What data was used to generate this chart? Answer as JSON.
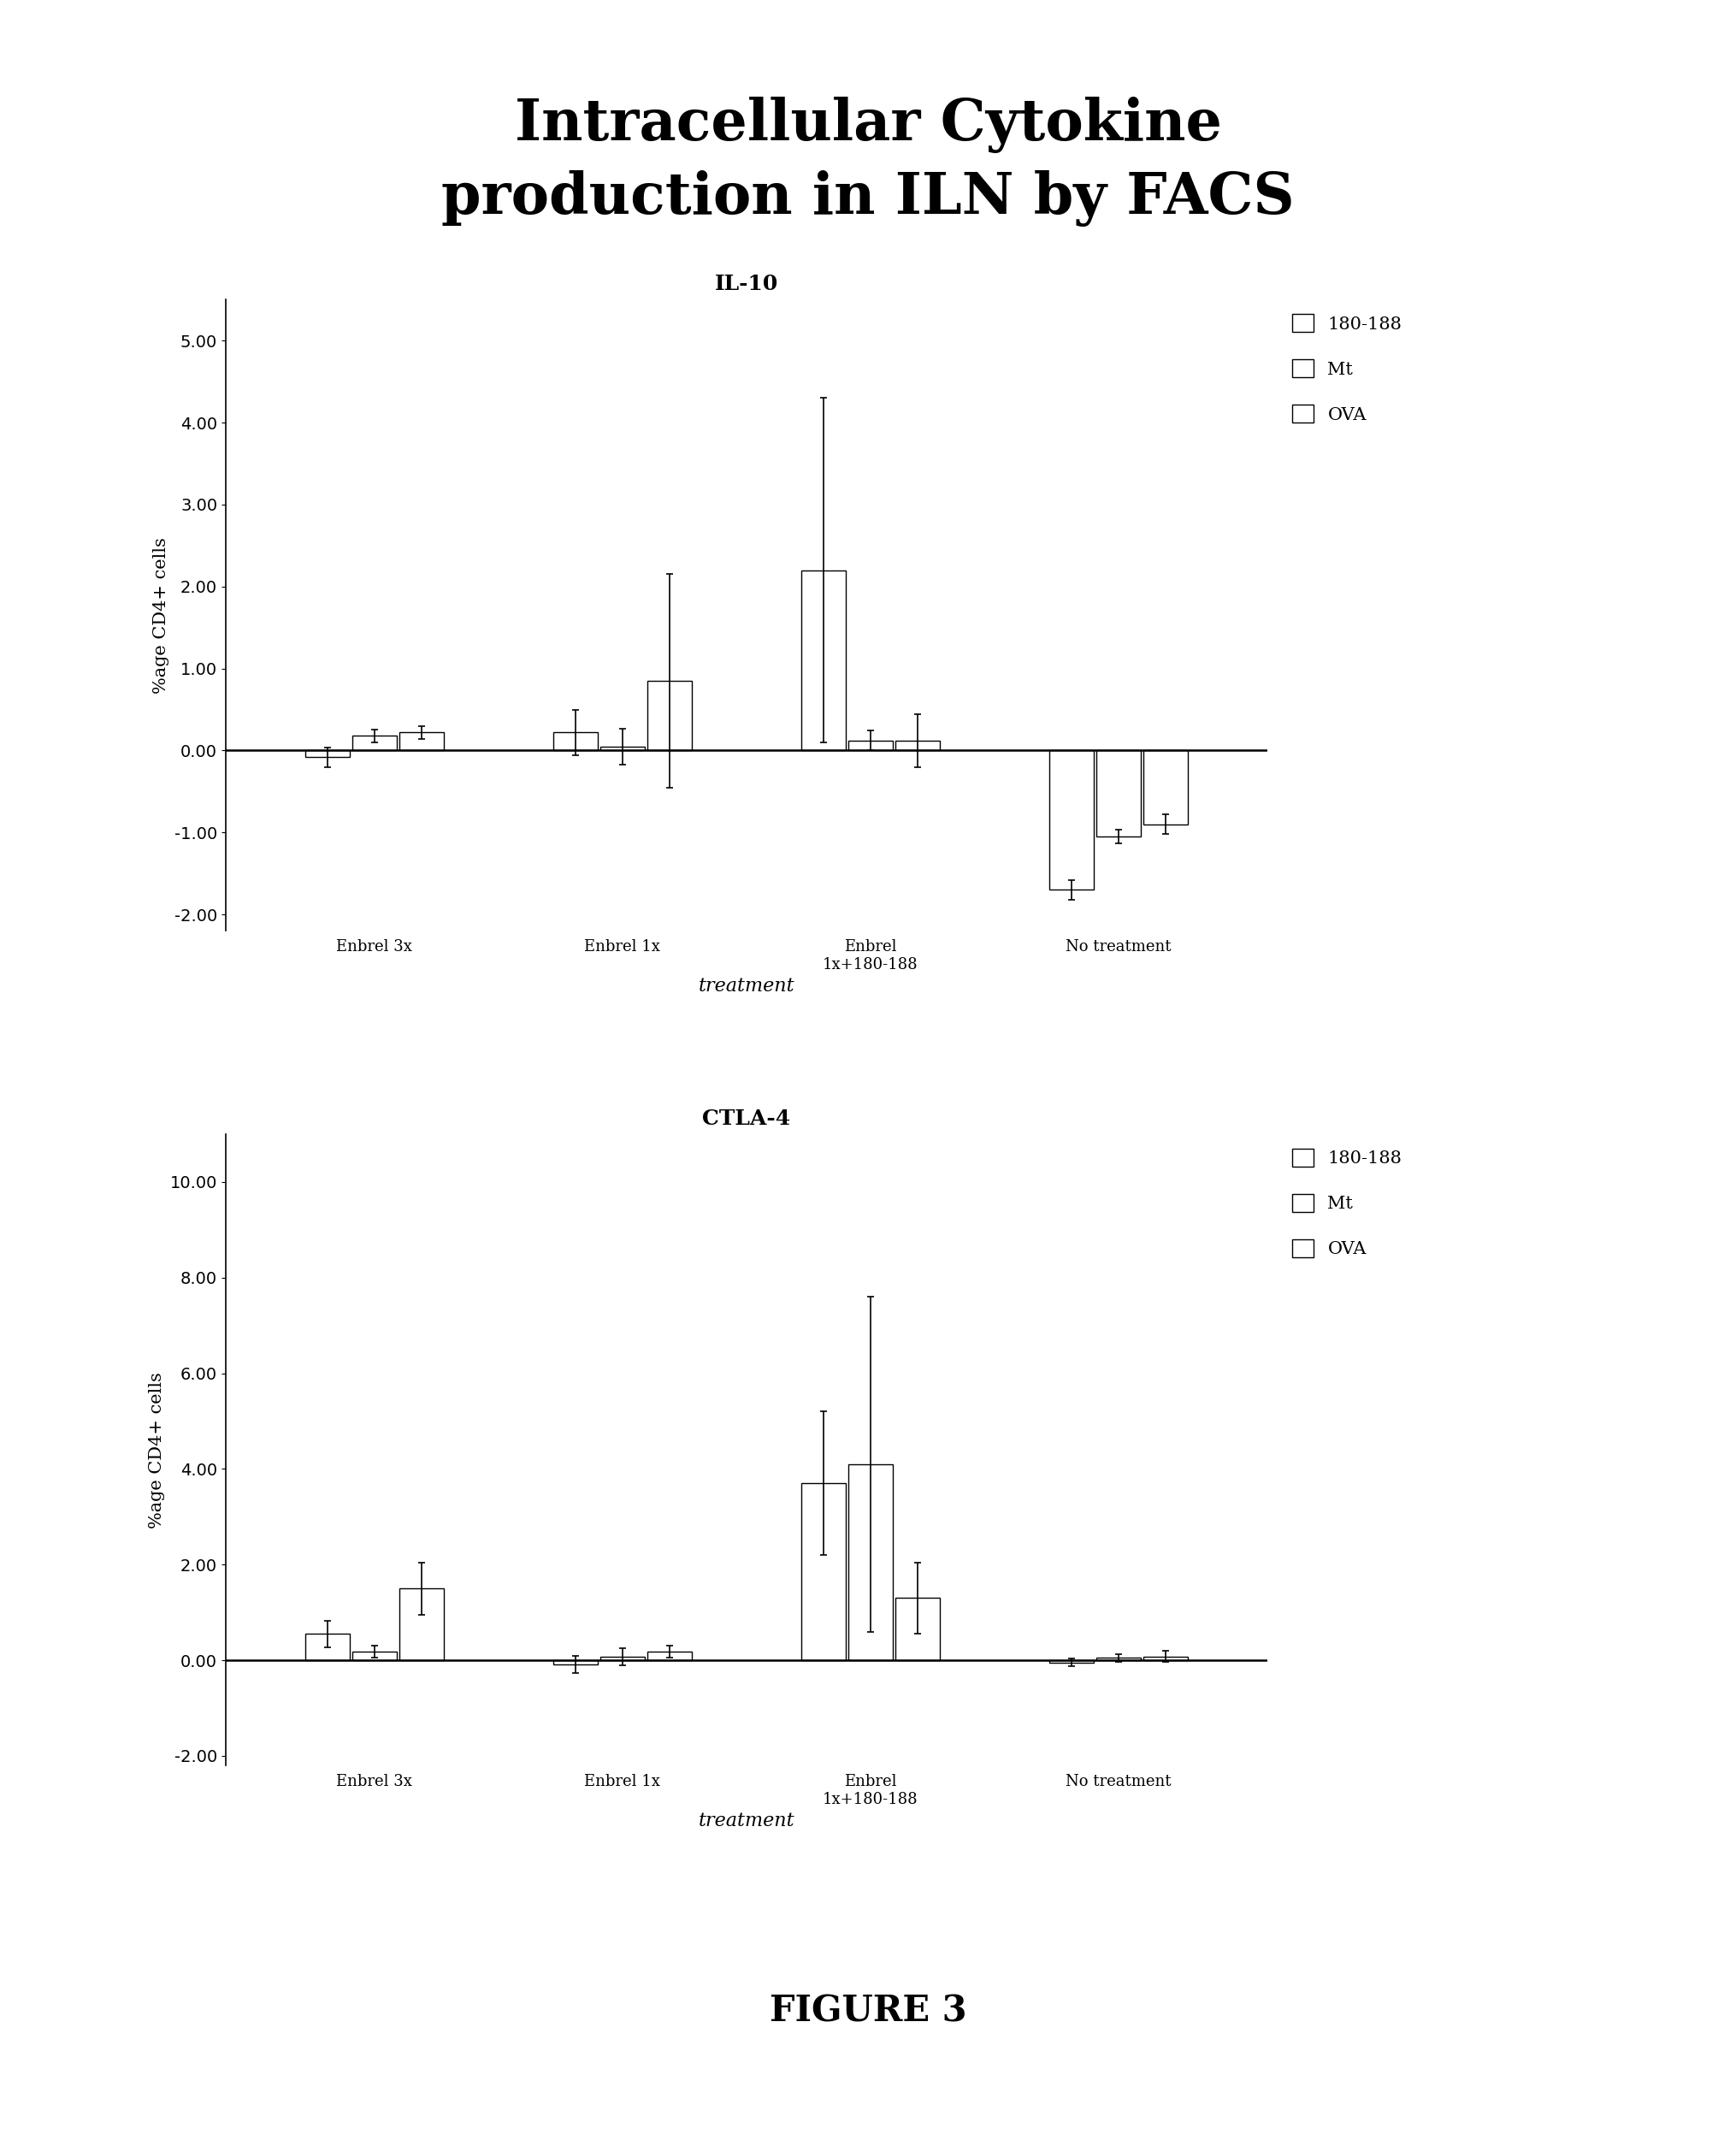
{
  "title": "Intracellular Cytokine\nproduction in ILN by FACS",
  "figure_label": "FIGURE 3",
  "plot1_title": "IL-10",
  "plot1_ylabel": "%age CD4+ cells",
  "plot1_xlabel": "treatment",
  "plot1_ylim": [
    -2.2,
    5.5
  ],
  "plot1_yticks": [
    -2.0,
    -1.0,
    0.0,
    1.0,
    2.0,
    3.0,
    4.0,
    5.0
  ],
  "plot1_groups": [
    "Enbrel 3x",
    "Enbrel 1x",
    "Enbrel\n1x+180-188",
    "No treatment"
  ],
  "plot1_180_188": [
    -0.08,
    0.22,
    2.2,
    -1.7
  ],
  "plot1_Mt": [
    0.18,
    0.05,
    0.12,
    -1.05
  ],
  "plot1_OVA": [
    0.22,
    0.85,
    0.12,
    -0.9
  ],
  "plot1_180_188_err": [
    0.12,
    0.28,
    2.1,
    0.12
  ],
  "plot1_Mt_err": [
    0.08,
    0.22,
    0.12,
    0.08
  ],
  "plot1_OVA_err": [
    0.08,
    1.3,
    0.32,
    0.12
  ],
  "plot2_title": "CTLA-4",
  "plot2_ylabel": "%age CD4+ cells",
  "plot2_xlabel": "treatment",
  "plot2_ylim": [
    -2.2,
    11.0
  ],
  "plot2_yticks": [
    -2.0,
    0.0,
    2.0,
    4.0,
    6.0,
    8.0,
    10.0
  ],
  "plot2_groups": [
    "Enbrel 3x",
    "Enbrel 1x",
    "Enbrel\n1x+180-188",
    "No treatment"
  ],
  "plot2_180_188": [
    0.55,
    -0.08,
    3.7,
    -0.05
  ],
  "plot2_Mt": [
    0.18,
    0.08,
    4.1,
    0.05
  ],
  "plot2_OVA": [
    1.5,
    0.18,
    1.3,
    0.08
  ],
  "plot2_180_188_err": [
    0.28,
    0.18,
    1.5,
    0.08
  ],
  "plot2_Mt_err": [
    0.12,
    0.18,
    3.5,
    0.08
  ],
  "plot2_OVA_err": [
    0.55,
    0.12,
    0.75,
    0.12
  ],
  "legend_labels": [
    "180-188",
    "Mt",
    "OVA"
  ],
  "background_color": "white"
}
